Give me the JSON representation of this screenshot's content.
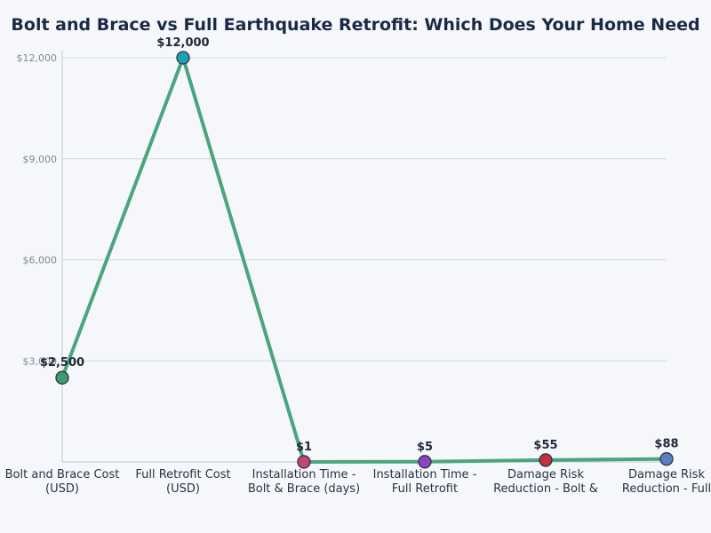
{
  "chart_data": {
    "type": "line",
    "title": "Bolt and Brace vs Full Earthquake Retrofit: Which Does Your Home Need",
    "xlabel": "",
    "ylabel": "",
    "ylim": [
      0,
      12000
    ],
    "yticks": [
      "$3,000",
      "$6,000",
      "$9,000",
      "$12,000"
    ],
    "grid": true,
    "legend": "none",
    "line_color": "#4aa57f",
    "categories": [
      [
        "Bolt and Brace Cost",
        "(USD)"
      ],
      [
        "Full Retrofit Cost",
        "(USD)"
      ],
      [
        "Installation Time -",
        "Bolt & Brace (days)"
      ],
      [
        "Installation Time -",
        "Full Retrofit"
      ],
      [
        "Damage Risk",
        "Reduction - Bolt &"
      ],
      [
        "Damage Risk",
        "Reduction - Full"
      ]
    ],
    "values": [
      2500,
      12000,
      1,
      5,
      55,
      88
    ],
    "data_labels": [
      "$2,500",
      "$12,000",
      "$1",
      "$5",
      "$55",
      "$88"
    ],
    "marker_colors": [
      "#3f9b6e",
      "#1aa3b8",
      "#c2457a",
      "#8e44c2",
      "#c4303e",
      "#5b7fc4"
    ]
  }
}
